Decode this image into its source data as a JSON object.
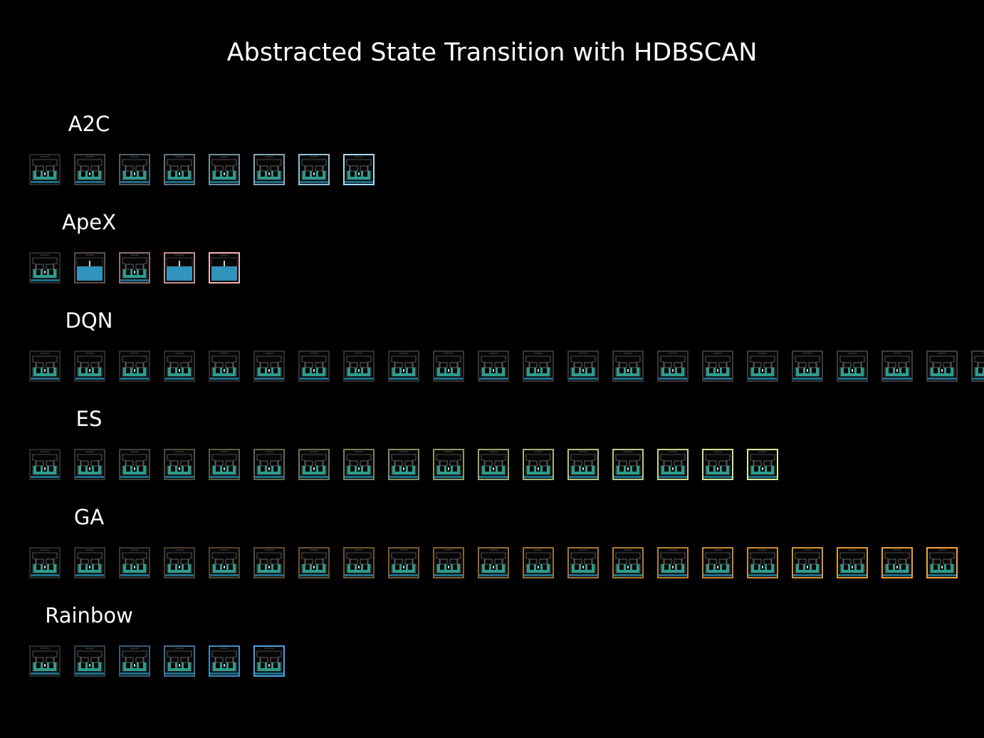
{
  "title": "Abstracted State Transition with HDBSCAN",
  "rows": [
    {
      "label": "A2C",
      "frame_count": 8,
      "frame_kind": "maze",
      "color_start": "#2a2a2a",
      "color_end": "#a8daf2"
    },
    {
      "label": "ApeX",
      "frame_count": 5,
      "frame_kind": "mixed",
      "color_start": "#2a2a2a",
      "color_end": "#f3b3b6",
      "filled_frames": [
        2,
        4,
        5
      ]
    },
    {
      "label": "DQN",
      "frame_count": 22,
      "frame_kind": "maze",
      "color_start": "#2a2a2a",
      "color_end": "#3e3e48"
    },
    {
      "label": "ES",
      "frame_count": 17,
      "frame_kind": "maze",
      "color_start": "#2a2a2a",
      "color_end": "#d8f09a"
    },
    {
      "label": "GA",
      "frame_count": 21,
      "frame_kind": "maze",
      "color_start": "#2a2a2a",
      "color_end": "#f2a53a"
    },
    {
      "label": "Rainbow",
      "frame_count": 6,
      "frame_kind": "maze",
      "color_start": "#2a2a2a",
      "color_end": "#4aa2e0"
    }
  ],
  "colors": {
    "background": "#000000",
    "text": "#ffffff",
    "maze_teal": "#2e9c8c",
    "water_blue": "#2f8fb8"
  }
}
